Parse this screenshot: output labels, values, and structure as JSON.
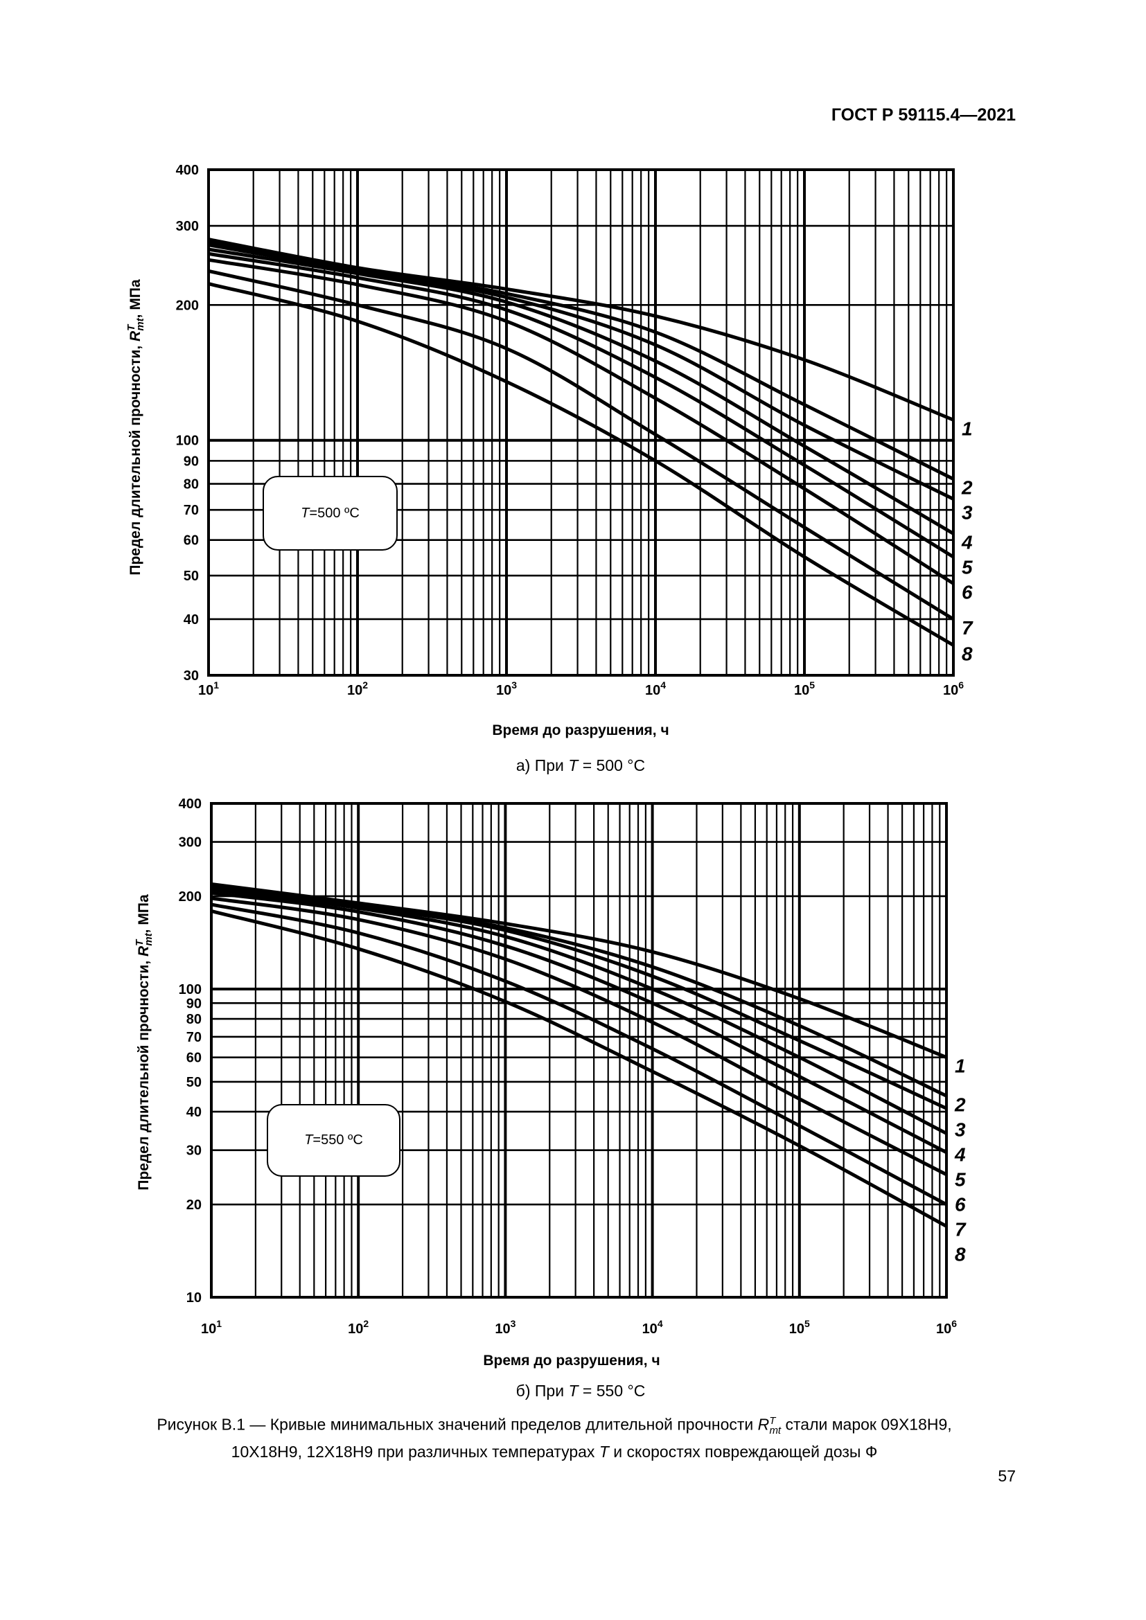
{
  "header": {
    "doc_number": "ГОСТ Р 59115.4—2021"
  },
  "page_number": "57",
  "figure_caption": {
    "line1_before": "Рисунок В.1 — Кривые минимальных значений пределов длительной прочности ",
    "symbol": "R",
    "symbol_sup": "T",
    "symbol_sub": "mt",
    "line1_after": " стали марок 09Х18Н9,",
    "line2_before": "10Х18Н9, 12Х18Н9 при различных температурах ",
    "line2_T": "T",
    "line2_after": " и скоростях повреждающей дозы Ф"
  },
  "chart_data": [
    {
      "type": "line",
      "panel_caption": {
        "prefix": "а) При ",
        "T": "T",
        "suffix": " = 500 °C"
      },
      "annotation": {
        "T": "T",
        "text": "=500 ºC"
      },
      "xlabel": "Время до разрушения, ч",
      "ylabel": {
        "before": "Предел длительной прочности, ",
        "sym": "R",
        "sup": "T",
        "sub": "mt",
        "after": ", МПа"
      },
      "x_scale": "log",
      "y_scale": "log",
      "xlim": [
        10,
        1000000
      ],
      "ylim": [
        30,
        400
      ],
      "x_ticks": [
        {
          "base": "10",
          "exp": "1"
        },
        {
          "base": "10",
          "exp": "2"
        },
        {
          "base": "10",
          "exp": "3"
        },
        {
          "base": "10",
          "exp": "4"
        },
        {
          "base": "10",
          "exp": "5"
        },
        {
          "base": "10",
          "exp": "6"
        }
      ],
      "y_ticks": [
        30,
        40,
        50,
        60,
        70,
        80,
        90,
        100,
        200,
        300,
        400
      ],
      "grid": true,
      "x": [
        10,
        100,
        1000,
        10000,
        100000,
        1000000
      ],
      "series": [
        {
          "name": "1",
          "values": [
            280,
            242,
            217,
            189,
            151,
            111
          ]
        },
        {
          "name": "2",
          "values": [
            276,
            240,
            212,
            174,
            120,
            82
          ]
        },
        {
          "name": "3",
          "values": [
            272,
            238,
            208,
            163,
            108,
            74
          ]
        },
        {
          "name": "4",
          "values": [
            266,
            235,
            203,
            150,
            97,
            62
          ]
        },
        {
          "name": "5",
          "values": [
            260,
            230,
            195,
            138,
            88,
            55
          ]
        },
        {
          "name": "6",
          "values": [
            252,
            222,
            184,
            124,
            78,
            48
          ]
        },
        {
          "name": "7",
          "values": [
            238,
            200,
            160,
            103,
            64,
            40
          ]
        },
        {
          "name": "8",
          "values": [
            223,
            184,
            135,
            90,
            55,
            35
          ]
        }
      ]
    },
    {
      "type": "line",
      "panel_caption": {
        "prefix": "б) При ",
        "T": "T",
        "suffix": " = 550 °C"
      },
      "annotation": {
        "T": "T",
        "text": "=550 ºC"
      },
      "xlabel": "Время до разрушения, ч",
      "ylabel": {
        "before": "Предел длительной прочности, ",
        "sym": "R",
        "sup": "T",
        "sub": "mt",
        "after": ", МПа"
      },
      "x_scale": "log",
      "y_scale": "log",
      "xlim": [
        10,
        1000000
      ],
      "ylim": [
        10,
        400
      ],
      "x_ticks": [
        {
          "base": "10",
          "exp": "1"
        },
        {
          "base": "10",
          "exp": "2"
        },
        {
          "base": "10",
          "exp": "3"
        },
        {
          "base": "10",
          "exp": "4"
        },
        {
          "base": "10",
          "exp": "5"
        },
        {
          "base": "10",
          "exp": "6"
        }
      ],
      "y_ticks": [
        10,
        20,
        30,
        40,
        50,
        60,
        70,
        80,
        90,
        100,
        200,
        300,
        400
      ],
      "grid": true,
      "x": [
        10,
        100,
        1000,
        10000,
        100000,
        1000000
      ],
      "series": [
        {
          "name": "1",
          "values": [
            219,
            190,
            163,
            132,
            93,
            60
          ]
        },
        {
          "name": "2",
          "values": [
            217,
            188,
            158,
            118,
            76,
            45
          ]
        },
        {
          "name": "3",
          "values": [
            214,
            186,
            155,
            110,
            68,
            41
          ]
        },
        {
          "name": "4",
          "values": [
            210,
            183,
            148,
            100,
            60,
            34
          ]
        },
        {
          "name": "5",
          "values": [
            205,
            178,
            138,
            90,
            52,
            29.5
          ]
        },
        {
          "name": "6",
          "values": [
            197,
            168,
            125,
            78,
            44,
            25
          ]
        },
        {
          "name": "7",
          "values": [
            188,
            152,
            106,
            64,
            36,
            20
          ]
        },
        {
          "name": "8",
          "values": [
            179,
            135,
            91,
            54,
            31,
            17
          ]
        }
      ]
    }
  ]
}
